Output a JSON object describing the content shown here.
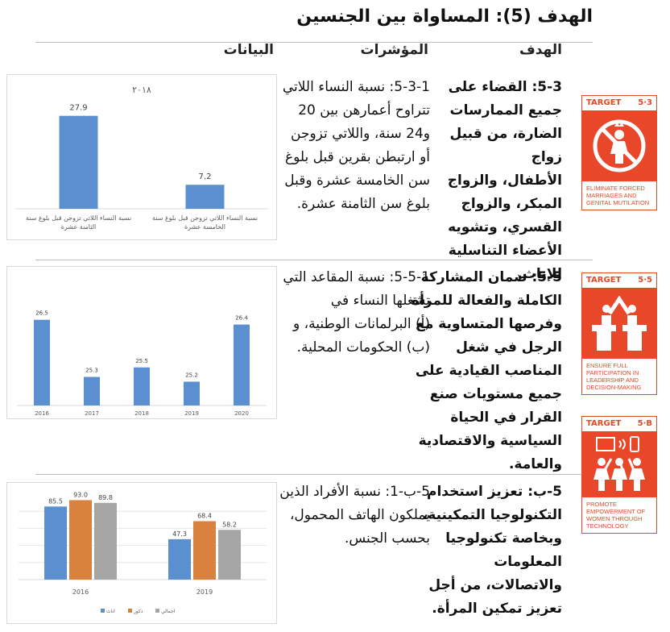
{
  "page": {
    "title": "الهدف (5): المساواة بين الجنسين",
    "headers": {
      "goal": "الهدف",
      "indicators": "المؤشرات",
      "data": "البيانات"
    }
  },
  "rows": [
    {
      "goal_lines": [
        "5-3: القضاء على",
        "جميع الممارسات",
        "الضارة، من قبيل زواج",
        "الأطفال، والزواج",
        "المبكر، والزواج",
        "القسري، وتشويه",
        "الأعضاء التناسلية",
        "للإناث."
      ],
      "indicator_lines": [
        "5-3-1: نسبة النساء اللاتي",
        "تتراوح أعمارهن بين 20",
        "و24 سنة، واللاتي تزوجن",
        "أو ارتبطن بقرين قبل بلوغ",
        "سن الخامسة عشرة وقبل",
        "بلوغ سن الثامنة عشرة."
      ],
      "badge": {
        "label": "TARGET",
        "number": "5·3",
        "icon": "no-child-marriage-icon",
        "caption": [
          "ELIMINATE FORCED",
          "MARRIAGES AND",
          "GENITAL MUTILATION"
        ]
      }
    },
    {
      "goal_lines": [
        "5-5: ضمان المشاركة",
        "الكاملة والفعالة للمرأة",
        "وفرصها المتساوية مع",
        "الرجل في شغل",
        "المناصب القيادية على",
        "جميع مستويات صنع",
        "القرار في الحياة",
        "السياسية والاقتصادية",
        "والعامة."
      ],
      "indicator_lines": [
        "5-5-1: نسبة المقاعد التي",
        "تشغلها النساء في",
        "(أ) البرلمانات الوطنية، و",
        "(ب) الحكومات المحلية."
      ],
      "badge": {
        "label": "TARGET",
        "number": "5·5",
        "icon": "leadership-podium-icon",
        "caption": [
          "ENSURE FULL",
          "PARTICIPATION IN",
          "LEADERSHIP AND",
          "DECISION-MAKING"
        ]
      }
    },
    {
      "goal_lines": [
        "5-ب: تعزيز استخدام",
        "التكنولوجيا التمكينية،",
        "وبخاصة تكنولوجيا",
        "المعلومات",
        "والاتصالات، من أجل",
        "تعزيز تمكين المرأة."
      ],
      "indicator_lines": [
        "5-ب-1: نسبة الأفراد الذين",
        "يملكون الهاتف المحمول،",
        "بحسب الجنس."
      ],
      "badge": {
        "label": "TARGET",
        "number": "5·B",
        "icon": "women-technology-icon",
        "caption": [
          "PROMOTE",
          "EMPOWERMENT OF",
          "WOMEN THROUGH",
          "TECHNOLOGY"
        ]
      }
    }
  ],
  "chart_data": [
    {
      "type": "bar",
      "title": "٢٠١٨",
      "categories": [
        "نسبة النساء اللاتي تزوجن قبل بلوغ سنة الثامنة عشرة",
        "نسبة النساء اللاتي تزوجن قبل بلوغ سنة الخامسة عشرة"
      ],
      "category_lines": [
        [
          "نسبة النساء اللاتي تزوجن قبل بلوغ سنة",
          "الثامنة عشرة"
        ],
        [
          "نسبة النساء اللاتي تزوجن قبل بلوغ سنة",
          "الخامسة عشرة"
        ]
      ],
      "values": [
        27.9,
        7.2
      ],
      "value_labels": [
        "27.9",
        "7.2"
      ],
      "ylim": [
        0,
        30
      ],
      "color": "#5b8fd0",
      "grid": false
    },
    {
      "type": "bar",
      "categories": [
        "2016",
        "2017",
        "2018",
        "2019",
        "2020"
      ],
      "values": [
        26.5,
        25.3,
        25.5,
        25.2,
        26.4
      ],
      "value_labels": [
        "26.5",
        "25.3",
        "25.5",
        "25.2",
        "26.4"
      ],
      "ylim": [
        24.7,
        26.8
      ],
      "color": "#5b8fd0",
      "grid": false
    },
    {
      "type": "bar",
      "categories": [
        "2016",
        "2019"
      ],
      "series": [
        {
          "name": "اناث",
          "values": [
            85.5,
            47.3
          ],
          "labels": [
            "85.5",
            "47.3"
          ],
          "color": "#5b8fd0"
        },
        {
          "name": "ذكور",
          "values": [
            93.0,
            68.4
          ],
          "labels": [
            "93.0",
            "68.4"
          ],
          "color": "#d9823f"
        },
        {
          "name": "اجمالي",
          "values": [
            89.8,
            58.2
          ],
          "labels": [
            "89.8",
            "58.2"
          ],
          "color": "#a5a5a5"
        }
      ],
      "ylim": [
        0,
        100
      ],
      "legend": "bottom",
      "grid": true
    }
  ]
}
